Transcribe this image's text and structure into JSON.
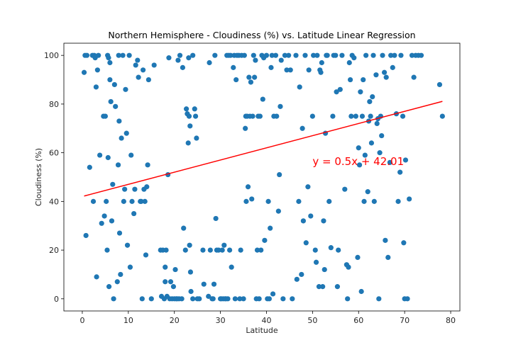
{
  "chart_data": {
    "type": "scatter",
    "title": "Northern Hemisphere - Cloudiness (%) vs. Latitude Linear Regression",
    "xlabel": "Latitude",
    "ylabel": "Cloudiness (%)",
    "xlim": [
      -4,
      82
    ],
    "ylim": [
      -5,
      105
    ],
    "xticks": [
      0,
      10,
      20,
      30,
      40,
      50,
      60,
      70,
      80
    ],
    "yticks": [
      0,
      20,
      40,
      60,
      80,
      100
    ],
    "grid": false,
    "colors": {
      "points": "#1f77b4",
      "regression": "#ff0000",
      "annotation": "#ff0000"
    },
    "regression": {
      "slope": 0.5,
      "intercept": 42.01,
      "x_range": [
        0.4,
        78.2
      ]
    },
    "annotation": {
      "text": "y = 0.5x + 42.01",
      "x": 50,
      "y": 55
    },
    "points": [
      [
        0.4,
        93
      ],
      [
        0.6,
        100
      ],
      [
        0.8,
        26
      ],
      [
        1.0,
        100
      ],
      [
        1.6,
        54
      ],
      [
        2.2,
        100
      ],
      [
        2.4,
        40
      ],
      [
        2.6,
        100
      ],
      [
        2.8,
        99
      ],
      [
        3.0,
        87
      ],
      [
        3.1,
        9
      ],
      [
        3.3,
        94
      ],
      [
        3.5,
        100
      ],
      [
        3.8,
        59
      ],
      [
        4.2,
        31
      ],
      [
        4.6,
        75
      ],
      [
        4.8,
        34
      ],
      [
        5.0,
        75
      ],
      [
        5.2,
        40
      ],
      [
        5.4,
        20
      ],
      [
        5.5,
        100
      ],
      [
        5.6,
        58
      ],
      [
        5.7,
        99
      ],
      [
        5.8,
        5
      ],
      [
        6.0,
        90
      ],
      [
        6.0,
        97
      ],
      [
        6.2,
        81
      ],
      [
        6.4,
        32
      ],
      [
        6.6,
        47
      ],
      [
        6.8,
        0
      ],
      [
        7.0,
        88
      ],
      [
        7.2,
        79
      ],
      [
        7.6,
        7
      ],
      [
        7.8,
        55
      ],
      [
        7.9,
        100
      ],
      [
        8.0,
        73
      ],
      [
        8.1,
        27
      ],
      [
        8.3,
        10
      ],
      [
        8.5,
        66
      ],
      [
        8.8,
        100
      ],
      [
        9.0,
        40
      ],
      [
        9.2,
        45
      ],
      [
        9.4,
        86
      ],
      [
        9.6,
        68
      ],
      [
        9.8,
        22
      ],
      [
        10.2,
        100
      ],
      [
        10.4,
        13
      ],
      [
        10.6,
        59
      ],
      [
        10.8,
        40
      ],
      [
        11.2,
        35
      ],
      [
        11.4,
        45
      ],
      [
        11.6,
        96
      ],
      [
        12.0,
        98
      ],
      [
        12.2,
        91
      ],
      [
        12.6,
        40
      ],
      [
        12.8,
        40
      ],
      [
        13.0,
        0
      ],
      [
        13.2,
        94
      ],
      [
        13.4,
        45
      ],
      [
        13.6,
        40
      ],
      [
        13.8,
        18
      ],
      [
        14.0,
        46
      ],
      [
        14.2,
        55
      ],
      [
        14.4,
        90
      ],
      [
        15.0,
        0
      ],
      [
        15.6,
        96
      ],
      [
        17.0,
        20
      ],
      [
        17.2,
        1
      ],
      [
        17.5,
        20
      ],
      [
        17.8,
        0
      ],
      [
        18.0,
        13
      ],
      [
        18.0,
        7
      ],
      [
        18.2,
        20
      ],
      [
        18.4,
        1
      ],
      [
        18.6,
        51
      ],
      [
        18.8,
        99
      ],
      [
        19.0,
        0
      ],
      [
        19.2,
        7
      ],
      [
        19.5,
        0
      ],
      [
        19.8,
        5
      ],
      [
        20.0,
        0
      ],
      [
        20.2,
        12
      ],
      [
        20.4,
        0
      ],
      [
        20.6,
        0
      ],
      [
        20.8,
        98
      ],
      [
        21.0,
        0
      ],
      [
        21.2,
        100
      ],
      [
        21.6,
        0
      ],
      [
        21.8,
        95
      ],
      [
        22.0,
        29
      ],
      [
        22.4,
        20
      ],
      [
        22.6,
        78
      ],
      [
        22.8,
        76
      ],
      [
        23.0,
        64
      ],
      [
        23.1,
        99
      ],
      [
        23.2,
        75
      ],
      [
        23.3,
        22
      ],
      [
        23.4,
        71
      ],
      [
        23.5,
        11
      ],
      [
        23.6,
        3
      ],
      [
        24.0,
        100
      ],
      [
        24.0,
        0
      ],
      [
        24.4,
        78
      ],
      [
        24.6,
        75
      ],
      [
        24.8,
        66
      ],
      [
        25.0,
        0
      ],
      [
        25.4,
        0
      ],
      [
        26.2,
        20
      ],
      [
        26.4,
        6
      ],
      [
        27.4,
        1
      ],
      [
        27.6,
        97
      ],
      [
        27.8,
        20
      ],
      [
        28.2,
        0
      ],
      [
        28.4,
        0
      ],
      [
        28.6,
        6
      ],
      [
        28.8,
        100
      ],
      [
        29.0,
        33
      ],
      [
        29.2,
        20
      ],
      [
        29.6,
        20
      ],
      [
        30.0,
        0
      ],
      [
        30.2,
        0
      ],
      [
        30.4,
        20
      ],
      [
        30.6,
        0
      ],
      [
        30.8,
        22
      ],
      [
        31.0,
        0
      ],
      [
        31.2,
        0
      ],
      [
        31.4,
        100
      ],
      [
        31.6,
        0
      ],
      [
        31.8,
        100
      ],
      [
        32.0,
        20
      ],
      [
        32.2,
        100
      ],
      [
        32.4,
        13
      ],
      [
        32.8,
        95
      ],
      [
        33.0,
        100
      ],
      [
        33.2,
        0
      ],
      [
        33.4,
        90
      ],
      [
        33.6,
        100
      ],
      [
        34.0,
        100
      ],
      [
        34.2,
        0
      ],
      [
        34.4,
        20
      ],
      [
        34.6,
        100
      ],
      [
        35.0,
        0
      ],
      [
        35.2,
        100
      ],
      [
        35.4,
        70
      ],
      [
        35.5,
        75
      ],
      [
        35.6,
        40
      ],
      [
        35.8,
        75
      ],
      [
        36.0,
        46
      ],
      [
        36.2,
        91
      ],
      [
        36.4,
        75
      ],
      [
        36.6,
        89
      ],
      [
        36.8,
        41
      ],
      [
        37.0,
        75
      ],
      [
        37.2,
        100
      ],
      [
        37.4,
        91
      ],
      [
        37.6,
        98
      ],
      [
        37.8,
        0
      ],
      [
        38.0,
        20
      ],
      [
        38.2,
        75
      ],
      [
        38.4,
        0
      ],
      [
        38.6,
        75
      ],
      [
        38.8,
        20
      ],
      [
        39.0,
        100
      ],
      [
        39.2,
        82
      ],
      [
        39.4,
        99
      ],
      [
        39.6,
        24
      ],
      [
        40.0,
        100
      ],
      [
        40.2,
        0
      ],
      [
        40.4,
        40
      ],
      [
        40.6,
        0
      ],
      [
        40.8,
        29
      ],
      [
        41.0,
        95
      ],
      [
        41.2,
        100
      ],
      [
        41.4,
        2
      ],
      [
        41.6,
        75
      ],
      [
        42.0,
        100
      ],
      [
        42.2,
        75
      ],
      [
        42.6,
        36
      ],
      [
        42.8,
        51
      ],
      [
        43.0,
        79
      ],
      [
        43.2,
        98
      ],
      [
        43.6,
        0
      ],
      [
        44.0,
        100
      ],
      [
        44.4,
        94
      ],
      [
        44.8,
        100
      ],
      [
        45.2,
        94
      ],
      [
        45.6,
        0
      ],
      [
        46.4,
        100
      ],
      [
        46.6,
        8
      ],
      [
        47.0,
        40
      ],
      [
        47.2,
        87
      ],
      [
        47.6,
        10
      ],
      [
        47.8,
        70
      ],
      [
        48.0,
        32
      ],
      [
        48.4,
        100
      ],
      [
        48.6,
        23
      ],
      [
        49.0,
        46
      ],
      [
        49.2,
        94
      ],
      [
        49.6,
        34
      ],
      [
        50.0,
        75
      ],
      [
        50.2,
        100
      ],
      [
        50.6,
        20
      ],
      [
        50.8,
        15
      ],
      [
        51.0,
        100
      ],
      [
        51.4,
        5
      ],
      [
        51.6,
        94
      ],
      [
        51.8,
        93
      ],
      [
        52.0,
        97
      ],
      [
        52.2,
        5
      ],
      [
        52.4,
        32
      ],
      [
        52.6,
        12
      ],
      [
        52.8,
        68
      ],
      [
        53.0,
        100
      ],
      [
        53.2,
        100
      ],
      [
        53.6,
        40
      ],
      [
        54.0,
        21
      ],
      [
        54.4,
        75
      ],
      [
        54.6,
        100
      ],
      [
        55.0,
        100
      ],
      [
        55.2,
        85
      ],
      [
        55.4,
        5
      ],
      [
        55.6,
        20
      ],
      [
        56.0,
        86
      ],
      [
        56.4,
        100
      ],
      [
        57.0,
        45
      ],
      [
        57.4,
        14
      ],
      [
        57.6,
        0
      ],
      [
        57.8,
        13
      ],
      [
        58.0,
        97
      ],
      [
        58.2,
        90
      ],
      [
        58.4,
        75
      ],
      [
        58.6,
        100
      ],
      [
        59.0,
        99
      ],
      [
        59.4,
        75
      ],
      [
        59.8,
        17
      ],
      [
        60.0,
        62
      ],
      [
        60.2,
        55
      ],
      [
        60.4,
        85
      ],
      [
        60.6,
        3
      ],
      [
        60.8,
        75
      ],
      [
        61.0,
        90
      ],
      [
        61.2,
        40
      ],
      [
        61.4,
        59
      ],
      [
        61.6,
        100
      ],
      [
        62.0,
        44
      ],
      [
        62.2,
        73
      ],
      [
        62.4,
        81
      ],
      [
        62.6,
        75
      ],
      [
        62.8,
        64
      ],
      [
        63.0,
        83
      ],
      [
        63.2,
        100
      ],
      [
        63.4,
        40
      ],
      [
        63.8,
        92
      ],
      [
        64.0,
        72
      ],
      [
        64.2,
        74
      ],
      [
        64.4,
        0
      ],
      [
        64.6,
        60
      ],
      [
        64.8,
        75
      ],
      [
        65.0,
        67
      ],
      [
        65.2,
        100
      ],
      [
        65.6,
        93
      ],
      [
        65.8,
        24
      ],
      [
        66.0,
        91
      ],
      [
        66.4,
        17
      ],
      [
        66.8,
        56
      ],
      [
        67.0,
        100
      ],
      [
        67.4,
        95
      ],
      [
        67.8,
        100
      ],
      [
        68.2,
        76
      ],
      [
        68.6,
        40
      ],
      [
        69.0,
        52
      ],
      [
        69.2,
        100
      ],
      [
        69.6,
        75
      ],
      [
        69.8,
        23
      ],
      [
        70.0,
        0
      ],
      [
        70.2,
        57
      ],
      [
        70.6,
        0
      ],
      [
        71.0,
        41
      ],
      [
        71.6,
        100
      ],
      [
        72.0,
        91
      ],
      [
        72.4,
        100
      ],
      [
        73.0,
        100
      ],
      [
        73.6,
        100
      ],
      [
        77.6,
        88
      ],
      [
        78.2,
        75
      ]
    ]
  }
}
